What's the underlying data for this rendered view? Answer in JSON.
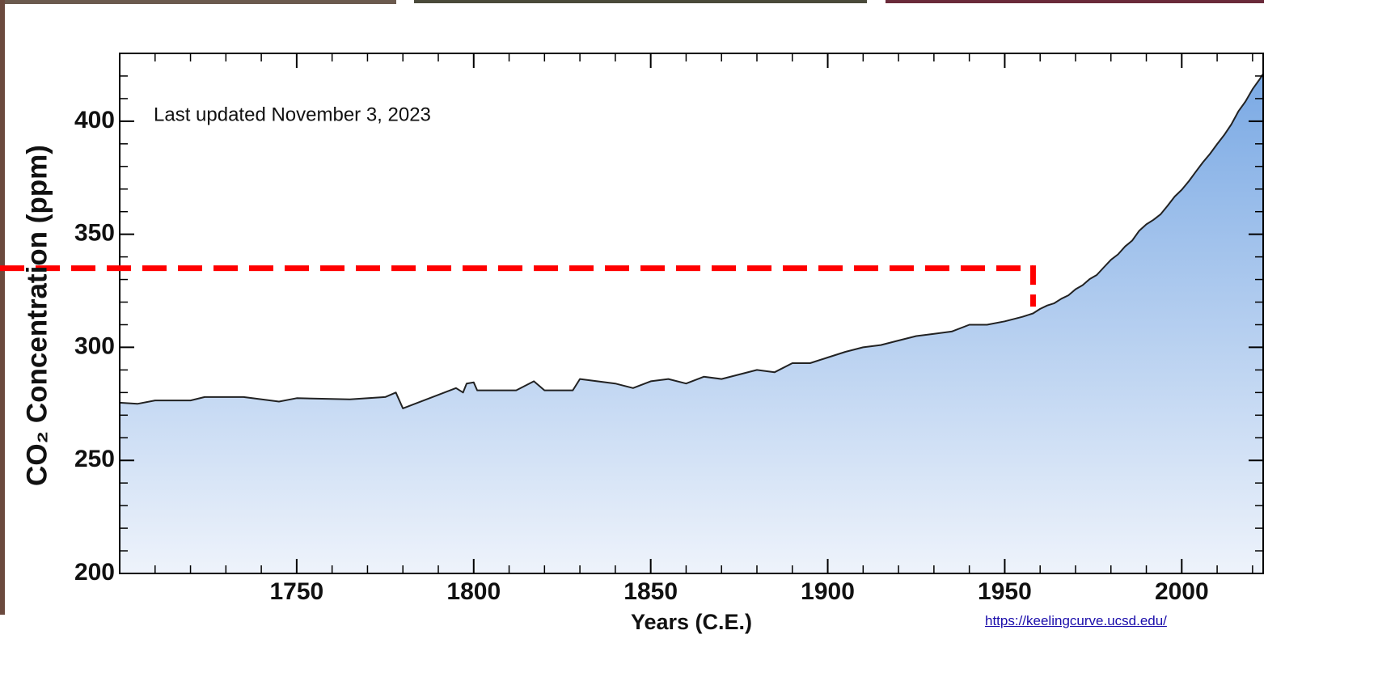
{
  "chart_data": {
    "type": "area",
    "y_label": "CO₂ Concentration (ppm)",
    "x_label": "Years (C.E.)",
    "annotation": "Last updated November 3, 2023",
    "source": "https://keelingcurve.ucsd.edu/",
    "line_color": "#222222",
    "fill_top_color": "#7aa9e4",
    "fill_bottom_color": "#eef3fb",
    "xlim": [
      1700,
      2023
    ],
    "ylim": [
      200,
      430
    ],
    "xticks": [
      1750,
      1800,
      1850,
      1900,
      1950,
      2000
    ],
    "yticks": [
      200,
      250,
      300,
      350,
      400
    ],
    "xminorticks": [
      1710,
      1720,
      1730,
      1740,
      1760,
      1770,
      1780,
      1790,
      1810,
      1820,
      1830,
      1840,
      1860,
      1870,
      1880,
      1890,
      1910,
      1920,
      1930,
      1940,
      1960,
      1970,
      1980,
      1990,
      2010,
      2020
    ],
    "yminorticks": [
      210,
      220,
      230,
      240,
      260,
      270,
      280,
      290,
      310,
      320,
      330,
      340,
      360,
      370,
      380,
      390,
      410,
      420
    ],
    "x": [
      1700,
      1705,
      1710,
      1720,
      1724,
      1735,
      1745,
      1750,
      1765,
      1775,
      1778,
      1780,
      1795,
      1797,
      1798,
      1800,
      1801,
      1812,
      1817,
      1820,
      1828,
      1830,
      1840,
      1845,
      1850,
      1855,
      1860,
      1865,
      1870,
      1875,
      1880,
      1885,
      1890,
      1895,
      1900,
      1905,
      1910,
      1915,
      1920,
      1925,
      1930,
      1935,
      1940,
      1945,
      1950,
      1955,
      1958,
      1960,
      1962,
      1964,
      1966,
      1968,
      1970,
      1972,
      1974,
      1976,
      1978,
      1980,
      1982,
      1984,
      1986,
      1988,
      1990,
      1992,
      1994,
      1996,
      1998,
      2000,
      2002,
      2004,
      2006,
      2008,
      2010,
      2012,
      2014,
      2016,
      2018,
      2020,
      2022,
      2023
    ],
    "values": [
      275.5,
      275,
      276.5,
      276.5,
      278,
      278,
      276,
      277.5,
      277,
      278,
      280,
      273,
      282,
      280,
      284,
      284.5,
      281,
      281,
      285,
      281,
      281,
      286,
      284,
      282,
      285,
      286,
      284,
      287,
      286,
      288,
      290,
      289,
      293,
      293,
      295.5,
      298,
      300,
      301,
      303,
      305,
      306,
      307,
      310,
      310,
      311.5,
      313.5,
      315,
      317,
      318.5,
      319.5,
      321.5,
      323,
      325.7,
      327.5,
      330.2,
      332,
      335.4,
      338.7,
      341.1,
      344.6,
      347.2,
      351.6,
      354.4,
      356.4,
      358.8,
      362.6,
      366.7,
      369.7,
      373.5,
      377.7,
      381.9,
      385.6,
      389.9,
      393.9,
      398.6,
      404.4,
      408.7,
      414.2,
      418.5,
      421
    ],
    "marker": {
      "x": 1958,
      "y": 335,
      "y_end": 318,
      "color": "#ff0000"
    }
  }
}
